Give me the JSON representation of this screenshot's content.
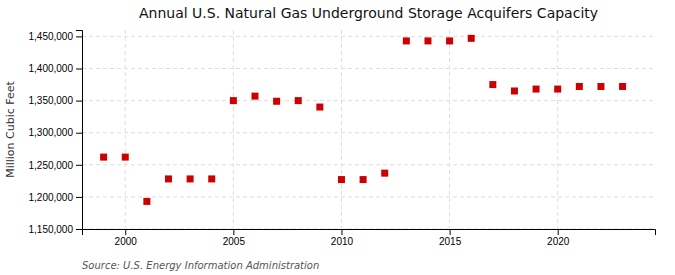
{
  "chart_data": {
    "type": "scatter",
    "title": "Annual U.S. Natural Gas Underground Storage Acquifers Capacity",
    "y_label": "Million Cubic Feet",
    "annotations": [
      "Source: U.S. Energy Information Administration"
    ],
    "x": [
      1999,
      2000,
      2001,
      2002,
      2003,
      2004,
      2005,
      2006,
      2007,
      2008,
      2009,
      2010,
      2011,
      2012,
      2013,
      2014,
      2015,
      2016,
      2017,
      2018,
      2019,
      2020,
      2021,
      2022,
      2023
    ],
    "values": [
      1262000,
      1262000,
      1193000,
      1228000,
      1228000,
      1228000,
      1350000,
      1357000,
      1349000,
      1350000,
      1340000,
      1227000,
      1227000,
      1237000,
      1443000,
      1443000,
      1443000,
      1447000,
      1375000,
      1365000,
      1368000,
      1368000,
      1372000,
      1372000,
      1372000
    ],
    "color": "#cc0000",
    "marker": "square",
    "xlim": [
      1998.0,
      2024.5
    ],
    "xticks": [
      2000,
      2005,
      2010,
      2015,
      2020
    ],
    "ylim": [
      1150000,
      1460000
    ],
    "yticks": [
      {
        "value": 1150000,
        "label": "1,150,000"
      },
      {
        "value": 1200000,
        "label": "1,200,000"
      },
      {
        "value": 1250000,
        "label": "1,250,000"
      },
      {
        "value": 1300000,
        "label": "1,300,000"
      },
      {
        "value": 1350000,
        "label": "1,350,000"
      },
      {
        "value": 1400000,
        "label": "1,400,000"
      },
      {
        "value": 1450000,
        "label": "1,450,000"
      }
    ],
    "grid": true
  }
}
